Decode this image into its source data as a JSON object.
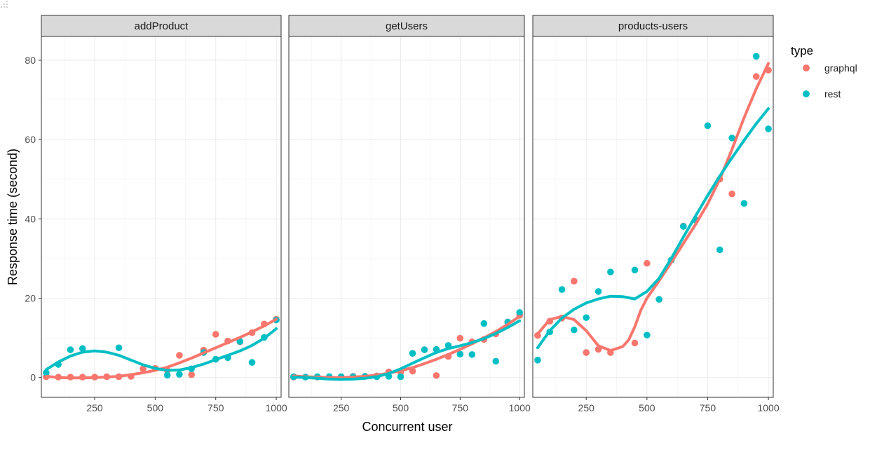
{
  "chart_data": {
    "type": "scatter",
    "xlabel": "Concurrent user",
    "ylabel": "Response time (second)",
    "xlim": [
      30,
      1020
    ],
    "ylim": [
      -5,
      86
    ],
    "x_ticks": [
      250,
      500,
      750,
      1000
    ],
    "y_ticks": [
      0,
      20,
      40,
      60,
      80
    ],
    "grid": true,
    "legend": {
      "title": "type",
      "placement": "right",
      "entries": [
        {
          "name": "graphql",
          "color": "#F8766D"
        },
        {
          "name": "rest",
          "color": "#00BFC4"
        }
      ]
    },
    "panels": [
      {
        "title": "addProduct",
        "series": [
          {
            "name": "graphql",
            "color": "#F8766D",
            "points": [
              [
                50,
                0.2
              ],
              [
                100,
                0.1
              ],
              [
                150,
                0.1
              ],
              [
                200,
                0.1
              ],
              [
                250,
                0.1
              ],
              [
                300,
                0.2
              ],
              [
                350,
                0.2
              ],
              [
                400,
                0.3
              ],
              [
                450,
                2.2
              ],
              [
                500,
                2.3
              ],
              [
                550,
                1.8
              ],
              [
                600,
                5.6
              ],
              [
                650,
                0.7
              ],
              [
                700,
                6.9
              ],
              [
                750,
                10.9
              ],
              [
                800,
                9.2
              ],
              [
                850,
                9.0
              ],
              [
                900,
                11.3
              ],
              [
                950,
                13.5
              ],
              [
                1000,
                14.7
              ]
            ],
            "smooth": [
              [
                50,
                0.3
              ],
              [
                100,
                0.0
              ],
              [
                150,
                -0.1
              ],
              [
                200,
                -0.1
              ],
              [
                250,
                0.0
              ],
              [
                300,
                0.1
              ],
              [
                350,
                0.3
              ],
              [
                400,
                0.7
              ],
              [
                450,
                1.2
              ],
              [
                500,
                1.8
              ],
              [
                550,
                2.6
              ],
              [
                600,
                3.7
              ],
              [
                650,
                4.9
              ],
              [
                700,
                6.2
              ],
              [
                750,
                7.5
              ],
              [
                800,
                8.8
              ],
              [
                850,
                10.1
              ],
              [
                900,
                11.5
              ],
              [
                950,
                13.0
              ],
              [
                1000,
                14.7
              ]
            ]
          },
          {
            "name": "rest",
            "color": "#00BFC4",
            "points": [
              [
                50,
                1.2
              ],
              [
                100,
                3.3
              ],
              [
                150,
                7.0
              ],
              [
                200,
                7.3
              ],
              [
                350,
                7.5
              ],
              [
                550,
                0.6
              ],
              [
                600,
                0.8
              ],
              [
                650,
                2.2
              ],
              [
                700,
                6.3
              ],
              [
                750,
                4.6
              ],
              [
                800,
                5.0
              ],
              [
                850,
                9.1
              ],
              [
                900,
                3.8
              ],
              [
                950,
                10.1
              ],
              [
                1000,
                14.5
              ]
            ],
            "smooth": [
              [
                50,
                2.0
              ],
              [
                100,
                3.9
              ],
              [
                150,
                5.4
              ],
              [
                200,
                6.4
              ],
              [
                250,
                6.7
              ],
              [
                300,
                6.4
              ],
              [
                350,
                5.6
              ],
              [
                400,
                4.4
              ],
              [
                450,
                3.2
              ],
              [
                500,
                2.3
              ],
              [
                550,
                1.8
              ],
              [
                600,
                1.9
              ],
              [
                650,
                2.5
              ],
              [
                700,
                3.4
              ],
              [
                750,
                4.5
              ],
              [
                800,
                5.6
              ],
              [
                850,
                6.7
              ],
              [
                900,
                8.1
              ],
              [
                950,
                9.9
              ],
              [
                1000,
                12.3
              ]
            ]
          }
        ]
      },
      {
        "title": "getUsers",
        "series": [
          {
            "name": "graphql",
            "color": "#F8766D",
            "points": [
              [
                50,
                0.1
              ],
              [
                100,
                0.1
              ],
              [
                150,
                0.1
              ],
              [
                200,
                0.1
              ],
              [
                250,
                0.2
              ],
              [
                300,
                0.3
              ],
              [
                350,
                0.3
              ],
              [
                400,
                0.4
              ],
              [
                450,
                1.4
              ],
              [
                500,
                1.3
              ],
              [
                550,
                1.6
              ],
              [
                600,
                7.0
              ],
              [
                650,
                0.5
              ],
              [
                700,
                5.3
              ],
              [
                750,
                9.9
              ],
              [
                800,
                9.0
              ],
              [
                850,
                9.6
              ],
              [
                900,
                11.0
              ],
              [
                950,
                14.0
              ],
              [
                1000,
                15.7
              ]
            ],
            "smooth": [
              [
                50,
                0.4
              ],
              [
                100,
                0.2
              ],
              [
                150,
                0.1
              ],
              [
                200,
                0.0
              ],
              [
                250,
                0.0
              ],
              [
                300,
                0.1
              ],
              [
                350,
                0.3
              ],
              [
                400,
                0.6
              ],
              [
                450,
                1.1
              ],
              [
                500,
                1.7
              ],
              [
                550,
                2.5
              ],
              [
                600,
                3.5
              ],
              [
                650,
                4.6
              ],
              [
                700,
                5.8
              ],
              [
                750,
                7.1
              ],
              [
                800,
                8.5
              ],
              [
                850,
                10.0
              ],
              [
                900,
                11.6
              ],
              [
                950,
                13.4
              ],
              [
                1000,
                15.4
              ]
            ]
          },
          {
            "name": "rest",
            "color": "#00BFC4",
            "points": [
              [
                50,
                0.2
              ],
              [
                100,
                0.1
              ],
              [
                150,
                0.2
              ],
              [
                200,
                0.2
              ],
              [
                250,
                0.2
              ],
              [
                300,
                0.2
              ],
              [
                350,
                0.3
              ],
              [
                400,
                0.2
              ],
              [
                450,
                0.3
              ],
              [
                500,
                0.2
              ],
              [
                550,
                6.1
              ],
              [
                600,
                7.0
              ],
              [
                650,
                7.1
              ],
              [
                700,
                8.1
              ],
              [
                750,
                5.9
              ],
              [
                800,
                5.8
              ],
              [
                850,
                13.6
              ],
              [
                900,
                4.1
              ],
              [
                950,
                14.0
              ],
              [
                1000,
                16.4
              ]
            ],
            "smooth": [
              [
                50,
                0.1
              ],
              [
                100,
                0.0
              ],
              [
                150,
                -0.2
              ],
              [
                200,
                -0.4
              ],
              [
                250,
                -0.5
              ],
              [
                300,
                -0.4
              ],
              [
                350,
                -0.2
              ],
              [
                400,
                0.2
              ],
              [
                450,
                1.0
              ],
              [
                500,
                2.2
              ],
              [
                550,
                3.6
              ],
              [
                600,
                5.0
              ],
              [
                650,
                6.3
              ],
              [
                700,
                7.3
              ],
              [
                750,
                8.0
              ],
              [
                800,
                8.8
              ],
              [
                850,
                9.8
              ],
              [
                900,
                11.1
              ],
              [
                950,
                12.6
              ],
              [
                1000,
                14.3
              ]
            ]
          }
        ]
      },
      {
        "title": "products-users",
        "series": [
          {
            "name": "graphql",
            "color": "#F8766D",
            "points": [
              [
                50,
                10.6
              ],
              [
                100,
                14.2
              ],
              [
                150,
                15.0
              ],
              [
                200,
                24.3
              ],
              [
                250,
                6.3
              ],
              [
                300,
                7.1
              ],
              [
                350,
                6.3
              ],
              [
                450,
                8.7
              ],
              [
                500,
                28.8
              ],
              [
                600,
                29.6
              ],
              [
                650,
                38.2
              ],
              [
                700,
                39.8
              ],
              [
                800,
                50.0
              ],
              [
                850,
                46.3
              ],
              [
                950,
                75.9
              ],
              [
                1000,
                77.5
              ]
            ],
            "smooth": [
              [
                50,
                11.0
              ],
              [
                100,
                14.6
              ],
              [
                150,
                15.4
              ],
              [
                200,
                14.6
              ],
              [
                250,
                11.8
              ],
              [
                300,
                8.0
              ],
              [
                350,
                6.8
              ],
              [
                400,
                7.8
              ],
              [
                425,
                9.5
              ],
              [
                450,
                12.8
              ],
              [
                475,
                17.0
              ],
              [
                500,
                20.0
              ],
              [
                550,
                24.4
              ],
              [
                600,
                29.0
              ],
              [
                650,
                33.8
              ],
              [
                700,
                38.6
              ],
              [
                750,
                43.8
              ],
              [
                800,
                50.0
              ],
              [
                850,
                57.5
              ],
              [
                900,
                65.5
              ],
              [
                950,
                72.8
              ],
              [
                1000,
                79.2
              ]
            ]
          },
          {
            "name": "rest",
            "color": "#00BFC4",
            "points": [
              [
                50,
                4.4
              ],
              [
                100,
                11.5
              ],
              [
                150,
                22.2
              ],
              [
                200,
                12.0
              ],
              [
                250,
                15.1
              ],
              [
                300,
                21.7
              ],
              [
                350,
                26.6
              ],
              [
                450,
                27.1
              ],
              [
                500,
                10.7
              ],
              [
                550,
                19.7
              ],
              [
                600,
                29.6
              ],
              [
                650,
                38.1
              ],
              [
                700,
                39.7
              ],
              [
                750,
                63.5
              ],
              [
                800,
                32.2
              ],
              [
                850,
                60.4
              ],
              [
                900,
                43.9
              ],
              [
                950,
                81.0
              ],
              [
                1000,
                62.7
              ]
            ],
            "smooth": [
              [
                50,
                7.5
              ],
              [
                100,
                11.8
              ],
              [
                150,
                15.0
              ],
              [
                200,
                17.2
              ],
              [
                250,
                18.8
              ],
              [
                300,
                19.8
              ],
              [
                350,
                20.5
              ],
              [
                400,
                20.4
              ],
              [
                450,
                19.8
              ],
              [
                500,
                21.7
              ],
              [
                550,
                25.0
              ],
              [
                600,
                30.0
              ],
              [
                650,
                35.4
              ],
              [
                700,
                40.7
              ],
              [
                750,
                45.9
              ],
              [
                800,
                50.8
              ],
              [
                850,
                55.4
              ],
              [
                900,
                59.8
              ],
              [
                950,
                64.0
              ],
              [
                1000,
                67.8
              ]
            ]
          }
        ]
      }
    ]
  }
}
